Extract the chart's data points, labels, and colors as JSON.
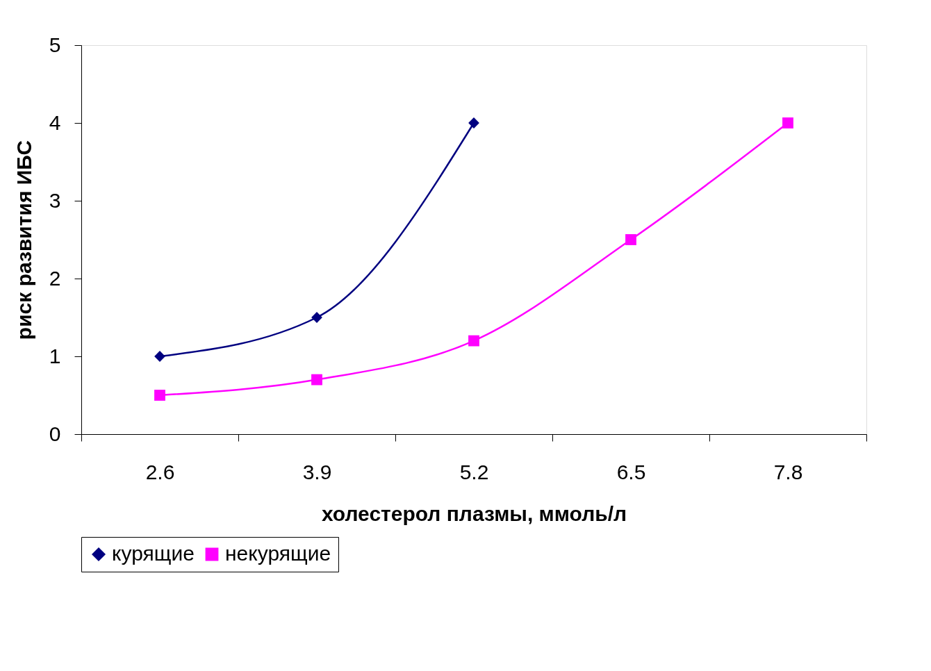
{
  "chart_data": {
    "type": "line",
    "xlabel": "холестерол плазмы, ммоль/л",
    "ylabel": "риск развития ИБС",
    "categories": [
      "2.6",
      "3.9",
      "5.2",
      "6.5",
      "7.8"
    ],
    "series": [
      {
        "name": "курящие",
        "color": "#000080",
        "marker": "diamond",
        "values": [
          1,
          1.5,
          4,
          null,
          null
        ]
      },
      {
        "name": "некурящие",
        "color": "#ff00ff",
        "marker": "square",
        "values": [
          0.5,
          0.7,
          1.2,
          2.5,
          4
        ]
      }
    ],
    "ylim": [
      0,
      5
    ],
    "yticks": [
      0,
      1,
      2,
      3,
      4,
      5
    ],
    "grid": false,
    "legend": "bottom",
    "line_style": "solid"
  }
}
